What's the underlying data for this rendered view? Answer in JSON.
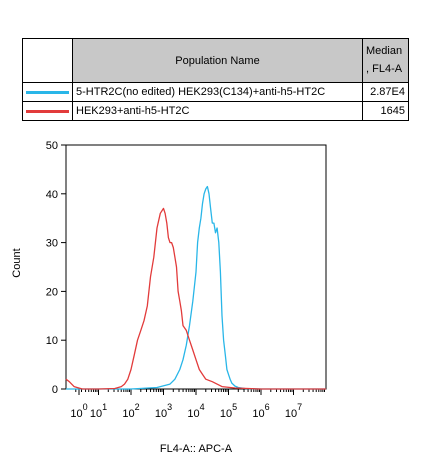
{
  "table": {
    "header": {
      "name": "Population Name",
      "median_line1": "Median",
      "median_line2": ", FL4-A"
    },
    "rows": [
      {
        "name": "5-HTR2C(no edited) HEK293(C134)+anti-h5-HT2C",
        "median": "2.87E4",
        "color": "#29b6e8"
      },
      {
        "name": "HEK293+anti-h5-HT2C",
        "median": "1645",
        "color": "#e23b3b"
      }
    ]
  },
  "chart_data": {
    "type": "line",
    "xlabel": "FL4-A:: APC-A",
    "ylabel": "Count",
    "xscale": "log",
    "xlim": [
      0,
      8
    ],
    "ylim": [
      0,
      50
    ],
    "x_ticks": [
      {
        "value": 0.4,
        "base": "10",
        "exp": "0"
      },
      {
        "value": 1,
        "base": "10",
        "exp": "1"
      },
      {
        "value": 2,
        "base": "10",
        "exp": "2"
      },
      {
        "value": 3,
        "base": "10",
        "exp": "3"
      },
      {
        "value": 4,
        "base": "10",
        "exp": "4"
      },
      {
        "value": 5,
        "base": "10",
        "exp": "5"
      },
      {
        "value": 6,
        "base": "10",
        "exp": "6"
      },
      {
        "value": 7,
        "base": "10",
        "exp": "7"
      }
    ],
    "y_ticks": [
      0,
      10,
      20,
      30,
      40,
      50
    ],
    "series": [
      {
        "name": "5-HTR2C(no edited) HEK293(C134)+anti-h5-HT2C",
        "color": "#29b6e8",
        "x": [
          0.0,
          1.0,
          2.0,
          2.8,
          3.2,
          3.35,
          3.5,
          3.6,
          3.7,
          3.8,
          3.9,
          4.0,
          4.05,
          4.1,
          4.15,
          4.2,
          4.25,
          4.3,
          4.35,
          4.4,
          4.45,
          4.5,
          4.55,
          4.6,
          4.65,
          4.7,
          4.75,
          4.8,
          4.85,
          4.9,
          4.95,
          5.0,
          5.05,
          5.1,
          5.2,
          5.3,
          5.5,
          6.0,
          7.0,
          8.0
        ],
        "y": [
          0,
          0,
          0,
          0.3,
          1,
          2,
          4,
          6,
          9,
          13,
          18,
          24,
          30,
          33,
          35,
          38,
          40,
          41,
          41.5,
          40,
          37,
          34,
          34,
          32,
          33,
          30,
          24,
          15,
          10,
          7,
          4,
          3,
          2,
          1.2,
          0.6,
          0.3,
          0.1,
          0,
          0,
          0
        ]
      },
      {
        "name": "HEK293+anti-h5-HT2C",
        "color": "#e23b3b",
        "x": [
          0.0,
          0.1,
          0.25,
          0.5,
          1.0,
          1.5,
          1.7,
          1.8,
          1.9,
          2.0,
          2.1,
          2.2,
          2.3,
          2.4,
          2.5,
          2.6,
          2.7,
          2.8,
          2.9,
          3.0,
          3.05,
          3.1,
          3.15,
          3.2,
          3.25,
          3.3,
          3.35,
          3.4,
          3.45,
          3.5,
          3.55,
          3.6,
          3.7,
          3.8,
          3.9,
          4.0,
          4.1,
          4.2,
          4.3,
          4.5,
          4.8,
          5.2,
          6.0,
          7.0,
          8.0
        ],
        "y": [
          2,
          1.5,
          0.5,
          0,
          0,
          0.1,
          0.5,
          1,
          2,
          4,
          7,
          10,
          12,
          14,
          17,
          23,
          27,
          33,
          36,
          37,
          36,
          34,
          31,
          30,
          30,
          29,
          27,
          25,
          20,
          18,
          16,
          13,
          12,
          10,
          8,
          6,
          4,
          3,
          2,
          1.5,
          0.5,
          0.2,
          0,
          0,
          0
        ]
      }
    ]
  }
}
